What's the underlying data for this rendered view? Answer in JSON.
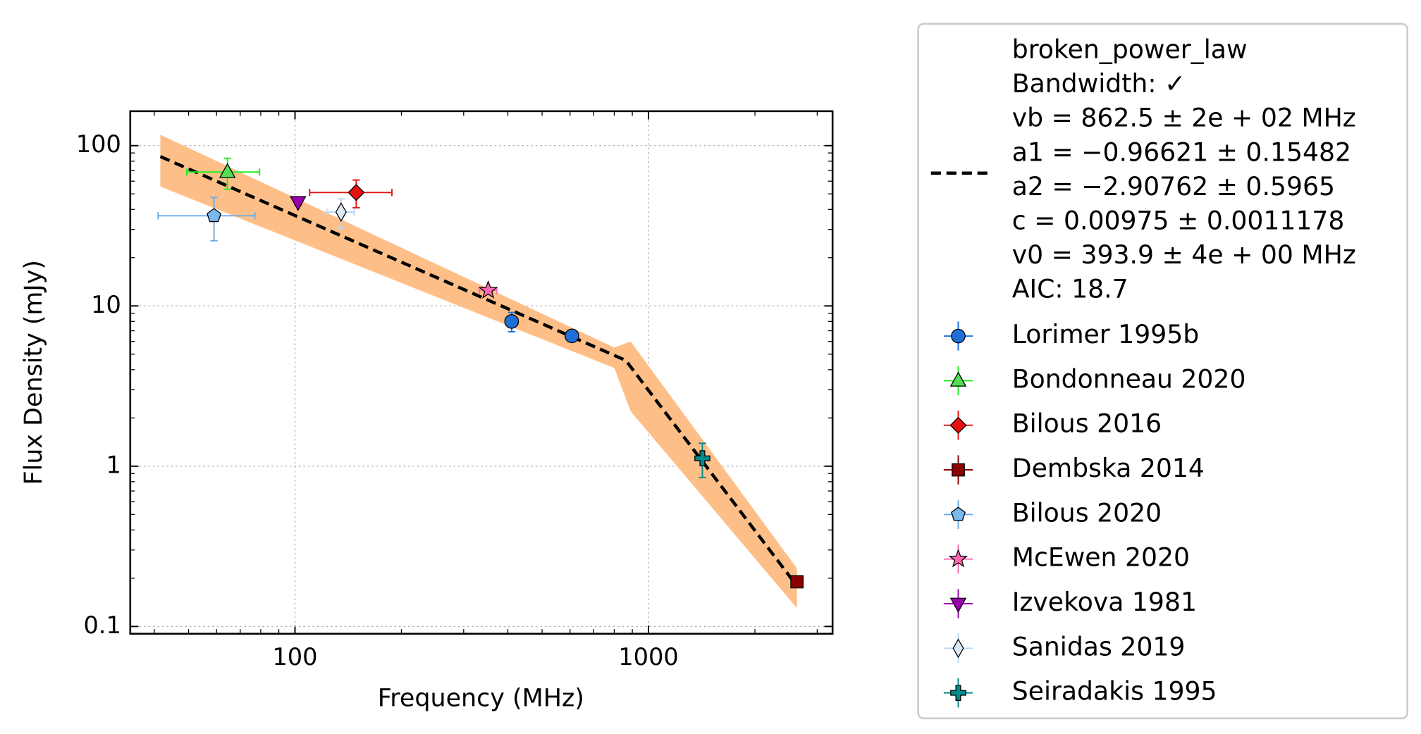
{
  "chart_data": {
    "type": "scatter",
    "x_label": "Frequency (MHz)",
    "y_label": "Flux Density (mJy)",
    "xscale": "log",
    "yscale": "log",
    "xlim": [
      34.2,
      3316
    ],
    "ylim": [
      0.0901,
      164
    ],
    "xticks": [
      100,
      1000
    ],
    "yticks": [
      0.1,
      1,
      10,
      100
    ],
    "grid": true,
    "legend": "outside right",
    "fit": {
      "name_lines": [
        "broken_power_law",
        "Bandwidth: ✓",
        "vb = 862.5 ± 2e + 02 MHz",
        "a1 = −0.96621 ± 0.15482",
        "a2 = −2.90762 ± 0.5965",
        "c = 0.00975 ± 0.0011178",
        "v0 = 393.9 ± 4e + 00 MHz",
        "AIC: 18.7"
      ],
      "color": "#000000",
      "x": [
        41.6,
        862.5,
        2630
      ],
      "y": [
        85.5,
        4.57,
        0.179
      ],
      "band_color": "#fdbf87",
      "band_x": [
        41.6,
        800,
        890,
        2630
      ],
      "band_upper": [
        117,
        5.5,
        6.0,
        0.23
      ],
      "band_lower": [
        55.5,
        4.1,
        2.2,
        0.13
      ]
    },
    "series": [
      {
        "name": "Lorimer 1995b",
        "marker": "circle",
        "color": "#1f6fd6",
        "face": "#1f6fd6",
        "x": [
          410,
          607
        ],
        "y": [
          8.0,
          6.5
        ],
        "xerr": [
          0,
          0
        ],
        "yerr": [
          1.1,
          0.3
        ]
      },
      {
        "name": "Bondonneau 2020",
        "marker": "triangle-up",
        "color": "#22ee22",
        "face": "#55dd55",
        "x": [
          64.4
        ],
        "y": [
          68.4
        ],
        "xerr": [
          15
        ],
        "yerr": [
          15
        ]
      },
      {
        "name": "Bilous 2016",
        "marker": "diamond",
        "color": "#e81010",
        "face": "#e81010",
        "x": [
          149
        ],
        "y": [
          51
        ],
        "xerr": [
          39
        ],
        "yerr": [
          10
        ]
      },
      {
        "name": "Dembska 2014",
        "marker": "square",
        "color": "#8b0000",
        "face": "#8b0000",
        "x": [
          2630
        ],
        "y": [
          0.19
        ],
        "xerr": [
          0
        ],
        "yerr": [
          0.01
        ]
      },
      {
        "name": "Bilous 2020",
        "marker": "pentagon",
        "color": "#6aaee8",
        "face": "#7ab8ee",
        "x": [
          59
        ],
        "y": [
          36.5
        ],
        "xerr": [
          18
        ],
        "yerr": [
          11
        ]
      },
      {
        "name": "McEwen 2020",
        "marker": "star",
        "color": "#ff69b4",
        "face": "#ff69b4",
        "x": [
          352
        ],
        "y": [
          12.5
        ],
        "xerr": [
          20
        ],
        "yerr": [
          0.5
        ]
      },
      {
        "name": "Izvekova 1981",
        "marker": "triangle-down",
        "color": "#9b00b0",
        "face": "#9b00b0",
        "x": [
          102
        ],
        "y": [
          44.5
        ],
        "xerr": [
          1
        ],
        "yerr": [
          2
        ]
      },
      {
        "name": "Sanidas 2019",
        "marker": "thin-diamond",
        "color": "#b9d6f0",
        "face": "#dbe9f7",
        "x": [
          135
        ],
        "y": [
          38.5
        ],
        "xerr": [
          12
        ],
        "yerr": [
          8
        ]
      },
      {
        "name": "Seiradakis 1995",
        "marker": "plus",
        "color": "#008b8b",
        "face": "#008b8b",
        "x": [
          1420
        ],
        "y": [
          1.12
        ],
        "xerr": [
          0
        ],
        "yerr": [
          0.27
        ]
      }
    ]
  }
}
